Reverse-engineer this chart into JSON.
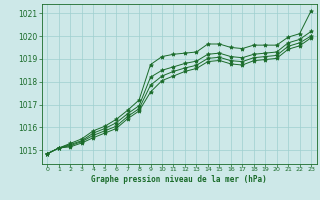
{
  "title": "Graphe pression niveau de la mer (hPa)",
  "bg_color": "#cde8e8",
  "grid_color": "#9fcfcf",
  "line_color": "#1a6b2a",
  "xlim": [
    -0.5,
    23.5
  ],
  "ylim": [
    1014.4,
    1021.4
  ],
  "yticks": [
    1015,
    1016,
    1017,
    1018,
    1019,
    1020,
    1021
  ],
  "xticks": [
    0,
    1,
    2,
    3,
    4,
    5,
    6,
    7,
    8,
    9,
    10,
    11,
    12,
    13,
    14,
    15,
    16,
    17,
    18,
    19,
    20,
    21,
    22,
    23
  ],
  "line1": [
    1014.85,
    1015.1,
    1015.3,
    1015.5,
    1015.85,
    1016.05,
    1016.35,
    1016.75,
    1017.2,
    1018.75,
    1019.1,
    1019.2,
    1019.25,
    1019.3,
    1019.65,
    1019.65,
    1019.5,
    1019.45,
    1019.6,
    1019.6,
    1019.6,
    1019.95,
    1020.1,
    1021.1
  ],
  "line2": [
    1014.85,
    1015.1,
    1015.25,
    1015.42,
    1015.75,
    1015.95,
    1016.2,
    1016.6,
    1016.95,
    1018.2,
    1018.5,
    1018.65,
    1018.8,
    1018.9,
    1019.2,
    1019.25,
    1019.1,
    1019.05,
    1019.2,
    1019.25,
    1019.3,
    1019.7,
    1019.85,
    1020.2
  ],
  "line3": [
    1014.85,
    1015.1,
    1015.2,
    1015.38,
    1015.65,
    1015.85,
    1016.05,
    1016.48,
    1016.82,
    1017.85,
    1018.25,
    1018.45,
    1018.6,
    1018.72,
    1019.02,
    1019.07,
    1018.92,
    1018.88,
    1019.05,
    1019.1,
    1019.15,
    1019.55,
    1019.7,
    1020.0
  ],
  "line4": [
    1014.85,
    1015.1,
    1015.15,
    1015.32,
    1015.55,
    1015.75,
    1015.95,
    1016.38,
    1016.72,
    1017.55,
    1018.05,
    1018.25,
    1018.45,
    1018.58,
    1018.88,
    1018.93,
    1018.78,
    1018.73,
    1018.92,
    1018.97,
    1019.02,
    1019.42,
    1019.57,
    1019.92
  ]
}
